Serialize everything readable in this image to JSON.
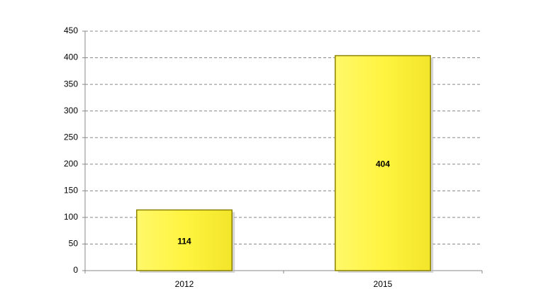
{
  "chart_data": {
    "type": "bar",
    "categories": [
      "2012",
      "2015"
    ],
    "values": [
      114,
      404
    ],
    "color": "#fff440",
    "ylim": [
      0,
      450
    ],
    "yticks": [
      0,
      50,
      100,
      150,
      200,
      250,
      300,
      350,
      400,
      450
    ],
    "grid": true
  }
}
